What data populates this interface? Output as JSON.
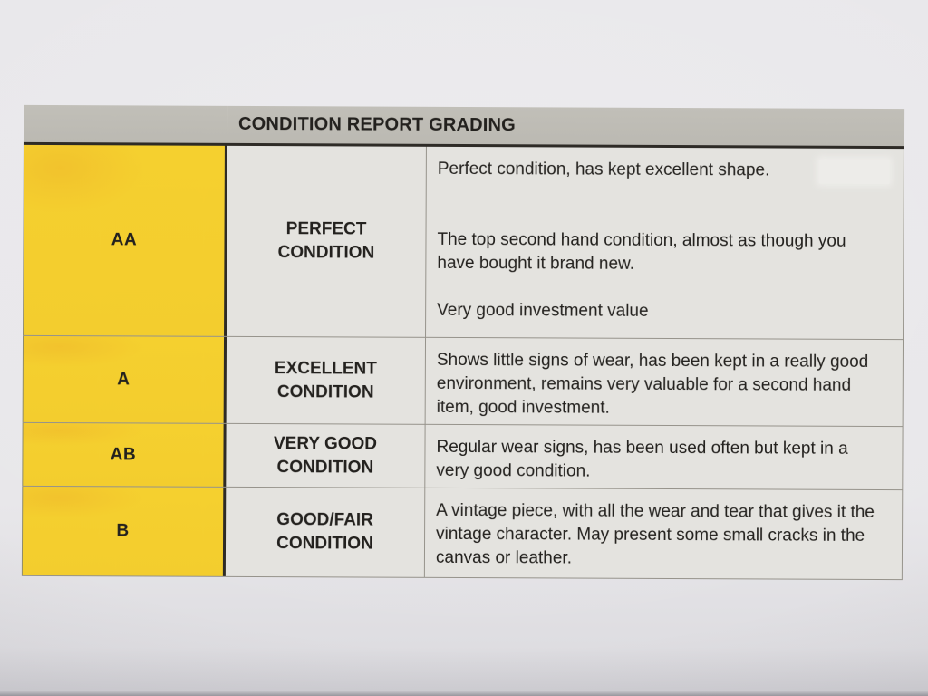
{
  "document": {
    "title": "CONDITION REPORT GRADING",
    "rows": [
      {
        "grade": "AA",
        "condition": "PERFECT CONDITION",
        "paragraphs": [
          "Perfect condition, has kept excellent shape.",
          "The top second hand condition, almost as though you have bought it brand new.",
          "Very good investment value"
        ]
      },
      {
        "grade": "A",
        "condition": "EXCELLENT CONDITION",
        "paragraphs": [
          "Shows little signs of wear, has been kept in a really good environment, remains very valuable for a second hand item, good investment."
        ]
      },
      {
        "grade": "AB",
        "condition": "VERY GOOD CONDITION",
        "paragraphs": [
          "Regular wear signs, has been used often but kept in a very good condition."
        ]
      },
      {
        "grade": "B",
        "condition": "GOOD/FAIR CONDITION",
        "paragraphs": [
          "A vintage piece, with all the wear and tear that gives it the vintage character. May present some small cracks in the canvas or leather."
        ]
      }
    ],
    "colors": {
      "grade_column": "#F4CF2E",
      "header_bar": "#BDBAB3",
      "cell_background": "#E4E3DF",
      "page_background": "#E8E7EA",
      "dark_rule": "#2E2B26",
      "thin_rule": "#96938B",
      "text": "#23211E"
    }
  }
}
